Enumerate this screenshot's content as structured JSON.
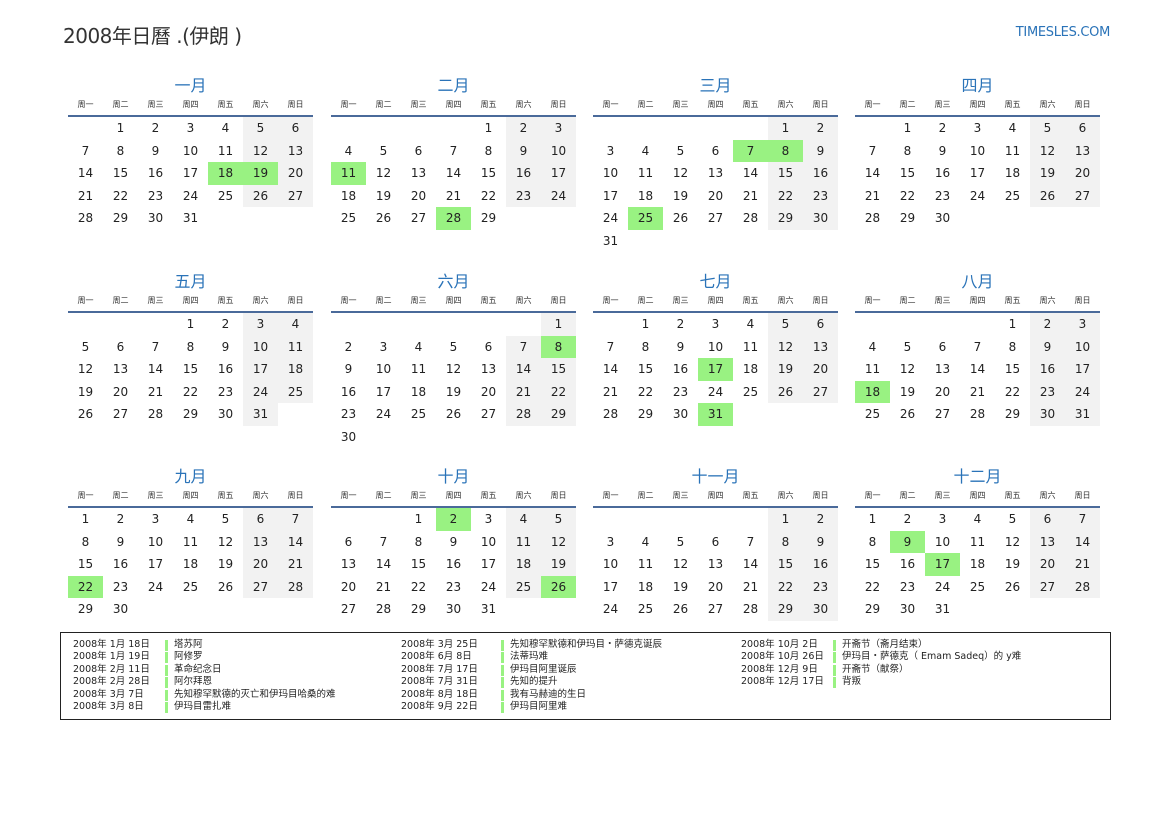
{
  "header": {
    "title": "2008年日曆 .(伊朗 )",
    "brand": "TIMESLES.COM"
  },
  "year": 2008,
  "weekdays": [
    "周一",
    "周二",
    "周三",
    "周四",
    "周五",
    "周六",
    "周日"
  ],
  "weekend_columns": [
    5,
    6
  ],
  "colors": {
    "accent": "#2a73b8",
    "holiday": "#99f282",
    "weekend": "#f2f2f2"
  },
  "months": [
    {
      "name": "一月",
      "holidays": [
        18,
        19
      ]
    },
    {
      "name": "二月",
      "holidays": [
        11,
        28
      ]
    },
    {
      "name": "三月",
      "holidays": [
        7,
        8,
        25
      ]
    },
    {
      "name": "四月",
      "holidays": []
    },
    {
      "name": "五月",
      "holidays": []
    },
    {
      "name": "六月",
      "holidays": [
        8
      ]
    },
    {
      "name": "七月",
      "holidays": [
        17,
        31
      ]
    },
    {
      "name": "八月",
      "holidays": [
        18
      ]
    },
    {
      "name": "九月",
      "holidays": [
        22
      ]
    },
    {
      "name": "十月",
      "holidays": [
        2,
        26
      ]
    },
    {
      "name": "十一月",
      "holidays": []
    },
    {
      "name": "十二月",
      "holidays": [
        9,
        17
      ]
    }
  ],
  "holiday_list": [
    [
      {
        "date": "2008年 1月 18日",
        "name": "塔苏阿"
      },
      {
        "date": "2008年 1月 19日",
        "name": "阿修罗"
      },
      {
        "date": "2008年 2月 11日",
        "name": "革命纪念日"
      },
      {
        "date": "2008年 2月 28日",
        "name": "阿尔拜恩"
      },
      {
        "date": "2008年 3月 7日",
        "name": "先知穆罕默德的灭亡和伊玛目哈桑的难"
      },
      {
        "date": "2008年 3月 8日",
        "name": "伊玛目雷扎难"
      }
    ],
    [
      {
        "date": "2008年 3月 25日",
        "name": "先知穆罕默德和伊玛目・萨德克诞辰"
      },
      {
        "date": "2008年 6月 8日",
        "name": "法蒂玛难"
      },
      {
        "date": "2008年 7月 17日",
        "name": "伊玛目阿里诞辰"
      },
      {
        "date": "2008年 7月 31日",
        "name": "先知的提升"
      },
      {
        "date": "2008年 8月 18日",
        "name": "我有马赫迪的生日"
      },
      {
        "date": "2008年 9月 22日",
        "name": "伊玛目阿里难"
      }
    ],
    [
      {
        "date": "2008年 10月 2日",
        "name": "开斋节（斋月结束）"
      },
      {
        "date": "2008年 10月 26日",
        "name": "伊玛目・萨德克（ Emam Sadeq）的 y难"
      },
      {
        "date": "2008年 12月 9日",
        "name": "开斋节（献祭）"
      },
      {
        "date": "2008年 12月 17日",
        "name": "背叛"
      }
    ]
  ]
}
